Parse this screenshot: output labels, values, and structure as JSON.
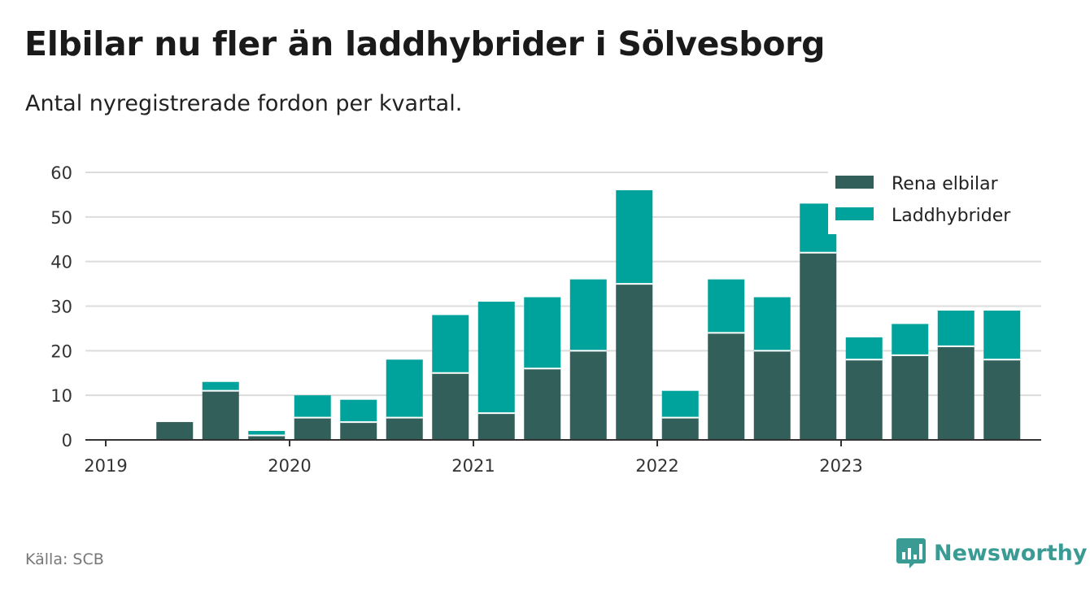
{
  "title": "Elbilar nu fler än laddhybrider i Sölvesborg",
  "subtitle": "Antal nyregistrerade fordon per kvartal.",
  "source": "Källa: SCB",
  "brand": "Newsworthy",
  "colors": {
    "rena": "#335f5a",
    "ladd": "#00a39b",
    "grid": "#dcdcdc",
    "axis": "#333333",
    "brand": "#3a9b94"
  },
  "chart_data": {
    "type": "bar",
    "stacked": true,
    "title": "Elbilar nu fler än laddhybrider i Sölvesborg",
    "subtitle": "Antal nyregistrerade fordon per kvartal.",
    "xlabel": "",
    "ylabel": "",
    "ylim": [
      0,
      60
    ],
    "yticks": [
      0,
      10,
      20,
      30,
      40,
      50,
      60
    ],
    "year_labels": [
      "2019",
      "2020",
      "2021",
      "2022",
      "2023"
    ],
    "categories": [
      "2019 Q1",
      "2019 Q2",
      "2019 Q3",
      "2019 Q4",
      "2020 Q1",
      "2020 Q2",
      "2020 Q3",
      "2020 Q4",
      "2021 Q1",
      "2021 Q2",
      "2021 Q3",
      "2021 Q4",
      "2022 Q1",
      "2022 Q2",
      "2022 Q3",
      "2022 Q4",
      "2023 Q1",
      "2023 Q2",
      "2023 Q3",
      "2023 Q4"
    ],
    "series": [
      {
        "name": "Rena elbilar",
        "values": [
          0,
          4,
          11,
          1,
          5,
          4,
          5,
          15,
          6,
          16,
          20,
          35,
          5,
          24,
          20,
          42,
          18,
          19,
          21,
          18
        ]
      },
      {
        "name": "Laddhybrider",
        "values": [
          0,
          0,
          2,
          1,
          5,
          5,
          13,
          13,
          25,
          16,
          16,
          21,
          6,
          12,
          12,
          11,
          5,
          7,
          8,
          11
        ]
      }
    ],
    "legend_position": "top-right",
    "grid": true
  }
}
